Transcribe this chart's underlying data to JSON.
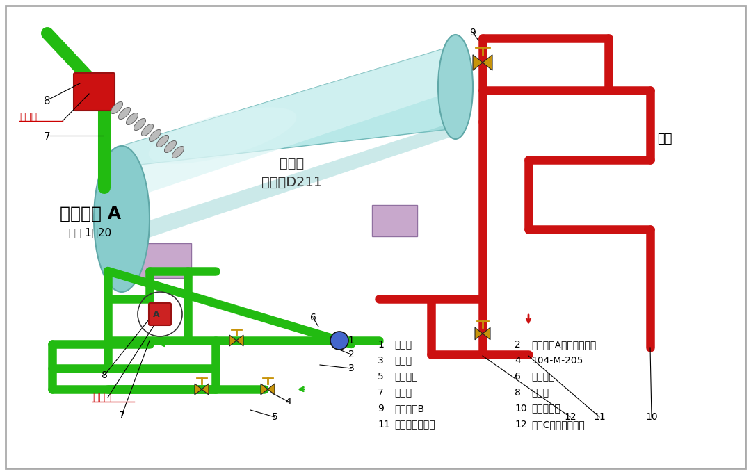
{
  "background_color": "#ffffff",
  "fig_width": 10.8,
  "fig_height": 6.82,
  "legend_items": [
    [
      "1",
      "止回阀",
      "2",
      "入口阀门A（关闭状态）"
    ],
    [
      "3",
      "注水管",
      "4",
      "104-M-205"
    ],
    [
      "5",
      "后手阀门",
      "6",
      "副线阀门"
    ],
    [
      "7",
      "原夹具",
      "8",
      "新夹具"
    ],
    [
      "9",
      "出口阀门B",
      "10",
      "接自碱洗罐"
    ],
    [
      "11",
      "接至脱异丁烷塔",
      "12",
      "阀门C（开启状态）"
    ]
  ],
  "detail_view_title": "局部视图 A",
  "detail_view_scale": "比例 1：20",
  "tank_label_line1": "流出物",
  "tank_label_line2": "水洗罐D211",
  "bypass_label": "旁路",
  "leak_label": "泄漏点",
  "tank_color": "#b8e8e8",
  "tank_highlight": "#daf4f4",
  "tank_shadow": "#7ec8c8",
  "pipe_red": "#cc1111",
  "pipe_green": "#22bb11",
  "pipe_green_dark": "#18a00a",
  "support_color": "#c8a8cc",
  "valve_gold": "#c8940a",
  "valve_blue": "#4466cc",
  "text_red": "#cc0000",
  "text_black": "#111111",
  "label_gray": "#333333",
  "lw_red": 9,
  "lw_green": 9,
  "lw_thin": 1.0
}
